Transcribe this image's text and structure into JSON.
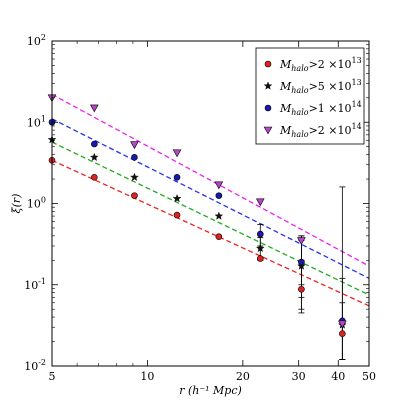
{
  "chart_data": {
    "type": "scatter",
    "title": "",
    "xlabel": "r (h⁻¹ Mpc)",
    "ylabel": "ξ(r)",
    "xscale": "log",
    "yscale": "log",
    "xlim": [
      5,
      50
    ],
    "ylim": [
      0.01,
      100
    ],
    "x_ticks": [
      {
        "value": 5,
        "label": "5"
      },
      {
        "value": 10,
        "label": "10"
      },
      {
        "value": 20,
        "label": "20"
      },
      {
        "value": 30,
        "label": "30"
      },
      {
        "value": 40,
        "label": "40"
      },
      {
        "value": 50,
        "label": "50"
      }
    ],
    "y_ticks": [
      {
        "value": 0.01,
        "base": "10",
        "exp": "-2"
      },
      {
        "value": 0.1,
        "base": "10",
        "exp": "-1"
      },
      {
        "value": 1,
        "base": "10",
        "exp": "0"
      },
      {
        "value": 10,
        "base": "10",
        "exp": "1"
      },
      {
        "value": 100,
        "base": "10",
        "exp": "2"
      }
    ],
    "grid": false,
    "legend_position": "top-right",
    "x": [
      5.0,
      6.8,
      9.1,
      12.4,
      16.8,
      22.7,
      30.6,
      41.2
    ],
    "series": [
      {
        "name_main": "M",
        "name_sub": "halo",
        "name_rest": ">2 ×10",
        "name_exp": "13",
        "color": "#dd2222",
        "marker": "circle",
        "line_color": "#ee2222",
        "values": [
          3.4,
          2.1,
          1.25,
          0.72,
          0.39,
          0.21,
          0.088,
          0.025
        ],
        "err_low": [
          null,
          null,
          null,
          null,
          null,
          null,
          0.045,
          0.012
        ],
        "err_high": [
          null,
          null,
          null,
          null,
          null,
          null,
          0.2,
          0.06
        ],
        "fit": [
          3.4,
          0.055
        ]
      },
      {
        "name_main": "M",
        "name_sub": "halo",
        "name_rest": ">5 ×10",
        "name_exp": "13",
        "color": "#111111",
        "marker": "star",
        "line_color": "#22aa22",
        "values": [
          6.1,
          3.7,
          2.1,
          1.15,
          0.7,
          0.28,
          0.17,
          0.032
        ],
        "err_low": [
          null,
          null,
          null,
          null,
          null,
          0.2,
          0.05,
          0.012
        ],
        "err_high": [
          null,
          null,
          null,
          null,
          null,
          0.38,
          0.35,
          0.12
        ],
        "fit": [
          5.7,
          0.075
        ]
      },
      {
        "name_main": "M",
        "name_sub": "halo",
        "name_rest": ">1 ×10",
        "name_exp": "14",
        "color": "#1a1aaa",
        "marker": "circle",
        "line_color": "#2233ee",
        "values": [
          10.0,
          5.4,
          3.7,
          2.1,
          1.25,
          0.42,
          0.19,
          0.036
        ],
        "err_low": [
          null,
          null,
          null,
          null,
          null,
          0.3,
          0.07,
          0.012
        ],
        "err_high": [
          null,
          null,
          null,
          null,
          null,
          0.55,
          0.4,
          1.6
        ],
        "fit": [
          11.0,
          0.12
        ]
      },
      {
        "name_main": "M",
        "name_sub": "halo",
        "name_rest": ">2 ×10",
        "name_exp": "14",
        "color": "#bb44cc",
        "marker": "triangle-down",
        "line_color": "#ee22ee",
        "values": [
          20.0,
          15.0,
          5.3,
          4.2,
          1.7,
          1.05,
          0.35,
          0.033
        ],
        "err_low": [
          null,
          null,
          null,
          null,
          null,
          null,
          0.1,
          null
        ],
        "err_high": [
          null,
          null,
          null,
          null,
          null,
          null,
          0.4,
          null
        ],
        "fit": [
          22.0,
          0.17
        ]
      }
    ]
  }
}
